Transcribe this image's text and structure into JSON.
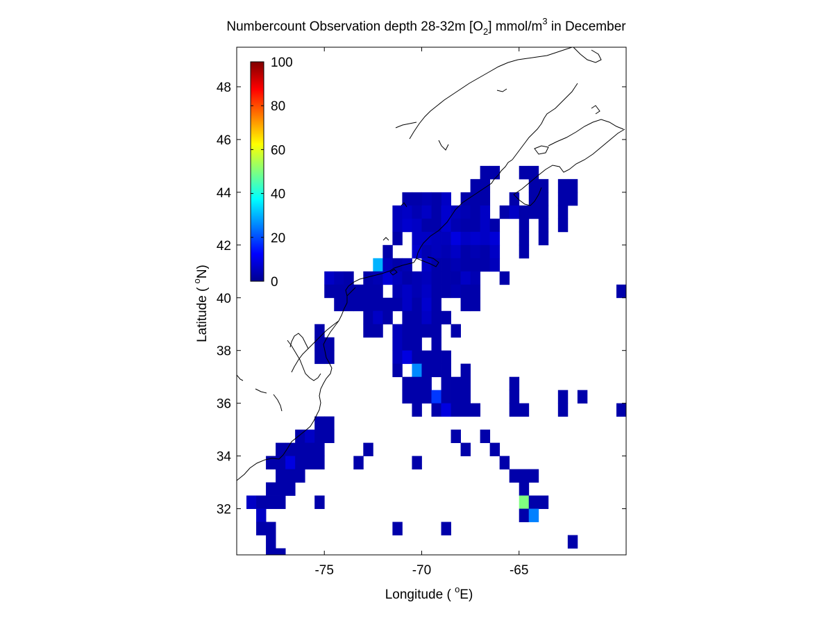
{
  "chart_data": {
    "type": "heatmap",
    "title": {
      "part1": "Numbercount Observation depth 28-32m [O",
      "sub": "2",
      "part2": "] mmol/m",
      "sup": "3",
      "part3": " in December"
    },
    "xlabel": {
      "prefix": "Longitude ( ",
      "sup": "o",
      "suffix": "E)"
    },
    "ylabel": {
      "prefix": "Latitude ( ",
      "sup": "o",
      "suffix": "N)"
    },
    "xlim": [
      -79.5,
      -59.5
    ],
    "ylim": [
      30.25,
      49.5
    ],
    "xticks": [
      -75,
      -70,
      -65
    ],
    "yticks": [
      32,
      34,
      36,
      38,
      40,
      42,
      44,
      46,
      48
    ],
    "cell_size_deg": 0.5,
    "colorbar": {
      "min": 0,
      "max": 100,
      "ticks": [
        0,
        20,
        40,
        60,
        80,
        100
      ],
      "colormap": "jet",
      "placement": "inside-top-left"
    },
    "grid": false,
    "cells": [
      [
        -64.25,
        44.75,
        3
      ],
      [
        -64.75,
        44.75,
        3
      ],
      [
        -62.75,
        44.25,
        3
      ],
      [
        -62.25,
        44.25,
        3
      ],
      [
        -63.75,
        44.25,
        3
      ],
      [
        -64.25,
        44.25,
        3
      ],
      [
        -66.25,
        44.75,
        3
      ],
      [
        -66.75,
        44.75,
        3
      ],
      [
        -66.75,
        44.25,
        3
      ],
      [
        -67.25,
        44.25,
        3
      ],
      [
        -68.75,
        43.75,
        6
      ],
      [
        -69.25,
        43.75,
        3
      ],
      [
        -69.75,
        43.75,
        4
      ],
      [
        -70.25,
        43.75,
        3
      ],
      [
        -70.75,
        43.75,
        3
      ],
      [
        -67.25,
        43.75,
        3
      ],
      [
        -67.75,
        43.75,
        3
      ],
      [
        -66.75,
        43.75,
        3
      ],
      [
        -65.25,
        43.75,
        3
      ],
      [
        -64.25,
        43.75,
        3
      ],
      [
        -63.75,
        43.75,
        3
      ],
      [
        -62.75,
        43.75,
        3
      ],
      [
        -62.25,
        43.75,
        3
      ],
      [
        -65.75,
        43.25,
        3
      ],
      [
        -65.25,
        43.25,
        6
      ],
      [
        -64.75,
        43.25,
        3
      ],
      [
        -64.25,
        43.25,
        3
      ],
      [
        -63.75,
        43.25,
        3
      ],
      [
        -62.75,
        43.25,
        3
      ],
      [
        -71.25,
        43.25,
        5
      ],
      [
        -70.75,
        43.25,
        6
      ],
      [
        -70.25,
        43.25,
        4
      ],
      [
        -69.75,
        43.25,
        6
      ],
      [
        -69.25,
        43.25,
        3
      ],
      [
        -68.75,
        43.25,
        7
      ],
      [
        -68.25,
        43.25,
        5
      ],
      [
        -67.75,
        43.25,
        4
      ],
      [
        -67.25,
        43.25,
        3
      ],
      [
        -66.75,
        43.25,
        6
      ],
      [
        -71.25,
        42.75,
        5
      ],
      [
        -70.75,
        42.75,
        7
      ],
      [
        -70.25,
        42.75,
        6
      ],
      [
        -69.75,
        42.75,
        3
      ],
      [
        -69.25,
        42.75,
        3
      ],
      [
        -68.75,
        42.75,
        7
      ],
      [
        -68.25,
        42.75,
        4
      ],
      [
        -67.75,
        42.75,
        3
      ],
      [
        -67.25,
        42.75,
        3
      ],
      [
        -66.75,
        42.75,
        6
      ],
      [
        -66.25,
        42.75,
        3
      ],
      [
        -64.75,
        42.75,
        3
      ],
      [
        -63.75,
        42.75,
        3
      ],
      [
        -62.75,
        42.75,
        3
      ],
      [
        -71.25,
        42.25,
        3
      ],
      [
        -70.25,
        42.25,
        6
      ],
      [
        -69.75,
        42.25,
        6
      ],
      [
        -69.25,
        42.25,
        5
      ],
      [
        -68.75,
        42.25,
        5
      ],
      [
        -68.25,
        42.25,
        9
      ],
      [
        -67.75,
        42.25,
        6
      ],
      [
        -67.25,
        42.25,
        7
      ],
      [
        -66.75,
        42.25,
        6
      ],
      [
        -66.25,
        42.25,
        8
      ],
      [
        -64.75,
        42.25,
        3
      ],
      [
        -63.75,
        42.25,
        3
      ],
      [
        -71.75,
        41.75,
        3
      ],
      [
        -70.25,
        41.75,
        7
      ],
      [
        -69.75,
        41.75,
        4
      ],
      [
        -69.25,
        41.75,
        5
      ],
      [
        -68.75,
        41.75,
        4
      ],
      [
        -68.25,
        41.75,
        6
      ],
      [
        -67.75,
        41.75,
        3
      ],
      [
        -67.25,
        41.75,
        4
      ],
      [
        -66.75,
        41.75,
        3
      ],
      [
        -66.25,
        41.75,
        6
      ],
      [
        -64.75,
        41.75,
        3
      ],
      [
        -72.25,
        41.25,
        30
      ],
      [
        -71.75,
        41.25,
        5
      ],
      [
        -71.25,
        41.25,
        3
      ],
      [
        -70.75,
        41.25,
        4
      ],
      [
        -69.75,
        41.25,
        6
      ],
      [
        -69.25,
        41.25,
        3
      ],
      [
        -68.75,
        41.25,
        3
      ],
      [
        -68.25,
        41.25,
        4
      ],
      [
        -67.75,
        41.25,
        3
      ],
      [
        -67.25,
        41.25,
        3
      ],
      [
        -66.75,
        41.25,
        3
      ],
      [
        -66.25,
        41.25,
        5
      ],
      [
        -74.75,
        40.75,
        6
      ],
      [
        -74.25,
        40.75,
        4
      ],
      [
        -73.75,
        40.75,
        3
      ],
      [
        -72.75,
        40.75,
        3
      ],
      [
        -72.25,
        40.75,
        4
      ],
      [
        -71.75,
        40.75,
        8
      ],
      [
        -71.25,
        40.75,
        5
      ],
      [
        -70.75,
        40.75,
        3
      ],
      [
        -70.25,
        40.75,
        4
      ],
      [
        -69.75,
        40.75,
        5
      ],
      [
        -69.25,
        40.75,
        3
      ],
      [
        -68.75,
        40.75,
        3
      ],
      [
        -68.25,
        40.75,
        3
      ],
      [
        -67.75,
        40.75,
        6
      ],
      [
        -67.25,
        40.75,
        4
      ],
      [
        -65.75,
        40.75,
        3
      ],
      [
        -74.75,
        40.25,
        3
      ],
      [
        -74.25,
        40.25,
        3
      ],
      [
        -73.75,
        40.25,
        3
      ],
      [
        -73.25,
        40.25,
        3
      ],
      [
        -72.75,
        40.25,
        3
      ],
      [
        -72.25,
        40.25,
        3
      ],
      [
        -71.25,
        40.25,
        4
      ],
      [
        -70.75,
        40.25,
        6
      ],
      [
        -70.25,
        40.25,
        4
      ],
      [
        -69.75,
        40.25,
        6
      ],
      [
        -69.25,
        40.25,
        3
      ],
      [
        -68.75,
        40.25,
        3
      ],
      [
        -68.25,
        40.25,
        4
      ],
      [
        -67.75,
        40.25,
        3
      ],
      [
        -67.25,
        40.25,
        3
      ],
      [
        -59.75,
        40.25,
        3
      ],
      [
        -74.25,
        39.75,
        3
      ],
      [
        -73.75,
        39.75,
        3
      ],
      [
        -73.25,
        39.75,
        3
      ],
      [
        -72.75,
        39.75,
        3
      ],
      [
        -72.25,
        39.75,
        3
      ],
      [
        -71.75,
        39.75,
        3
      ],
      [
        -71.25,
        39.75,
        3
      ],
      [
        -70.75,
        39.75,
        6
      ],
      [
        -70.25,
        39.75,
        3
      ],
      [
        -69.75,
        39.75,
        7
      ],
      [
        -69.25,
        39.75,
        3
      ],
      [
        -67.75,
        39.75,
        3
      ],
      [
        -67.25,
        39.75,
        3
      ],
      [
        -72.75,
        39.25,
        3
      ],
      [
        -72.25,
        39.25,
        6
      ],
      [
        -71.75,
        39.25,
        3
      ],
      [
        -70.75,
        39.25,
        3
      ],
      [
        -70.25,
        39.25,
        3
      ],
      [
        -69.75,
        39.25,
        6
      ],
      [
        -69.25,
        39.25,
        3
      ],
      [
        -68.75,
        39.25,
        3
      ],
      [
        -75.25,
        38.75,
        3
      ],
      [
        -72.75,
        38.75,
        3
      ],
      [
        -72.25,
        38.75,
        3
      ],
      [
        -71.25,
        38.75,
        5
      ],
      [
        -70.75,
        38.75,
        3
      ],
      [
        -70.25,
        38.75,
        3
      ],
      [
        -69.75,
        38.75,
        3
      ],
      [
        -69.25,
        38.75,
        3
      ],
      [
        -68.25,
        38.75,
        3
      ],
      [
        -75.25,
        38.25,
        3
      ],
      [
        -74.75,
        38.25,
        3
      ],
      [
        -71.25,
        38.25,
        5
      ],
      [
        -70.75,
        38.25,
        3
      ],
      [
        -70.25,
        38.25,
        3
      ],
      [
        -69.25,
        38.25,
        3
      ],
      [
        -75.25,
        37.75,
        3
      ],
      [
        -74.75,
        37.75,
        3
      ],
      [
        -71.25,
        37.75,
        5
      ],
      [
        -70.75,
        37.75,
        9
      ],
      [
        -70.25,
        37.75,
        3
      ],
      [
        -69.75,
        37.75,
        3
      ],
      [
        -69.25,
        37.75,
        3
      ],
      [
        -68.75,
        37.75,
        3
      ],
      [
        -71.25,
        37.25,
        3
      ],
      [
        -70.25,
        37.25,
        26
      ],
      [
        -69.75,
        37.25,
        3
      ],
      [
        -69.25,
        37.25,
        3
      ],
      [
        -68.75,
        37.25,
        3
      ],
      [
        -67.75,
        37.25,
        3
      ],
      [
        -70.75,
        36.75,
        3
      ],
      [
        -70.25,
        36.75,
        3
      ],
      [
        -69.75,
        36.75,
        3
      ],
      [
        -68.75,
        36.75,
        3
      ],
      [
        -68.25,
        36.75,
        3
      ],
      [
        -67.75,
        36.75,
        3
      ],
      [
        -65.25,
        36.75,
        3
      ],
      [
        -70.75,
        36.25,
        3
      ],
      [
        -70.25,
        36.25,
        3
      ],
      [
        -69.75,
        36.25,
        3
      ],
      [
        -69.25,
        36.25,
        18
      ],
      [
        -68.75,
        36.25,
        3
      ],
      [
        -68.25,
        36.25,
        3
      ],
      [
        -67.75,
        36.25,
        3
      ],
      [
        -65.25,
        36.25,
        3
      ],
      [
        -62.75,
        36.25,
        3
      ],
      [
        -61.75,
        36.25,
        3
      ],
      [
        -70.25,
        35.75,
        3
      ],
      [
        -69.25,
        35.75,
        3
      ],
      [
        -68.75,
        35.75,
        9
      ],
      [
        -68.25,
        35.75,
        3
      ],
      [
        -67.75,
        35.75,
        3
      ],
      [
        -67.25,
        35.75,
        3
      ],
      [
        -65.25,
        35.75,
        3
      ],
      [
        -64.75,
        35.75,
        3
      ],
      [
        -62.75,
        35.75,
        3
      ],
      [
        -59.75,
        35.75,
        3
      ],
      [
        -75.25,
        35.25,
        3
      ],
      [
        -74.75,
        35.25,
        3
      ],
      [
        -76.25,
        34.75,
        3
      ],
      [
        -75.75,
        34.75,
        6
      ],
      [
        -75.25,
        34.75,
        3
      ],
      [
        -74.75,
        34.75,
        3
      ],
      [
        -68.25,
        34.75,
        3
      ],
      [
        -66.75,
        34.75,
        3
      ],
      [
        -77.25,
        34.25,
        3
      ],
      [
        -76.75,
        34.25,
        3
      ],
      [
        -76.25,
        34.25,
        3
      ],
      [
        -75.75,
        34.25,
        3
      ],
      [
        -75.25,
        34.25,
        3
      ],
      [
        -72.75,
        34.25,
        3
      ],
      [
        -67.75,
        34.25,
        3
      ],
      [
        -66.25,
        34.25,
        3
      ],
      [
        -77.75,
        33.75,
        3
      ],
      [
        -77.25,
        33.75,
        3
      ],
      [
        -76.75,
        33.75,
        9
      ],
      [
        -76.25,
        33.75,
        3
      ],
      [
        -75.75,
        33.75,
        3
      ],
      [
        -75.25,
        33.75,
        3
      ],
      [
        -73.25,
        33.75,
        3
      ],
      [
        -70.25,
        33.75,
        3
      ],
      [
        -65.75,
        33.75,
        3
      ],
      [
        -77.25,
        33.25,
        3
      ],
      [
        -76.75,
        33.25,
        3
      ],
      [
        -76.25,
        33.25,
        3
      ],
      [
        -65.25,
        33.25,
        3
      ],
      [
        -64.75,
        33.25,
        3
      ],
      [
        -64.25,
        33.25,
        3
      ],
      [
        -77.75,
        32.75,
        3
      ],
      [
        -77.25,
        32.75,
        3
      ],
      [
        -76.75,
        32.75,
        3
      ],
      [
        -64.75,
        32.75,
        3
      ],
      [
        -78.75,
        32.25,
        6
      ],
      [
        -78.25,
        32.25,
        3
      ],
      [
        -77.75,
        32.25,
        3
      ],
      [
        -77.25,
        32.25,
        3
      ],
      [
        -75.25,
        32.25,
        3
      ],
      [
        -64.75,
        32.25,
        50
      ],
      [
        -64.25,
        32.25,
        3
      ],
      [
        -63.75,
        32.25,
        3
      ],
      [
        -78.25,
        31.75,
        6
      ],
      [
        -64.75,
        31.75,
        3
      ],
      [
        -64.25,
        31.75,
        25
      ],
      [
        -78.25,
        31.25,
        3
      ],
      [
        -77.75,
        31.25,
        3
      ],
      [
        -71.25,
        31.25,
        3
      ],
      [
        -68.75,
        31.25,
        3
      ],
      [
        -77.75,
        30.75,
        3
      ],
      [
        -62.25,
        30.75,
        3
      ],
      [
        -77.75,
        30.25,
        3
      ],
      [
        -77.25,
        30.25,
        3
      ]
    ]
  }
}
